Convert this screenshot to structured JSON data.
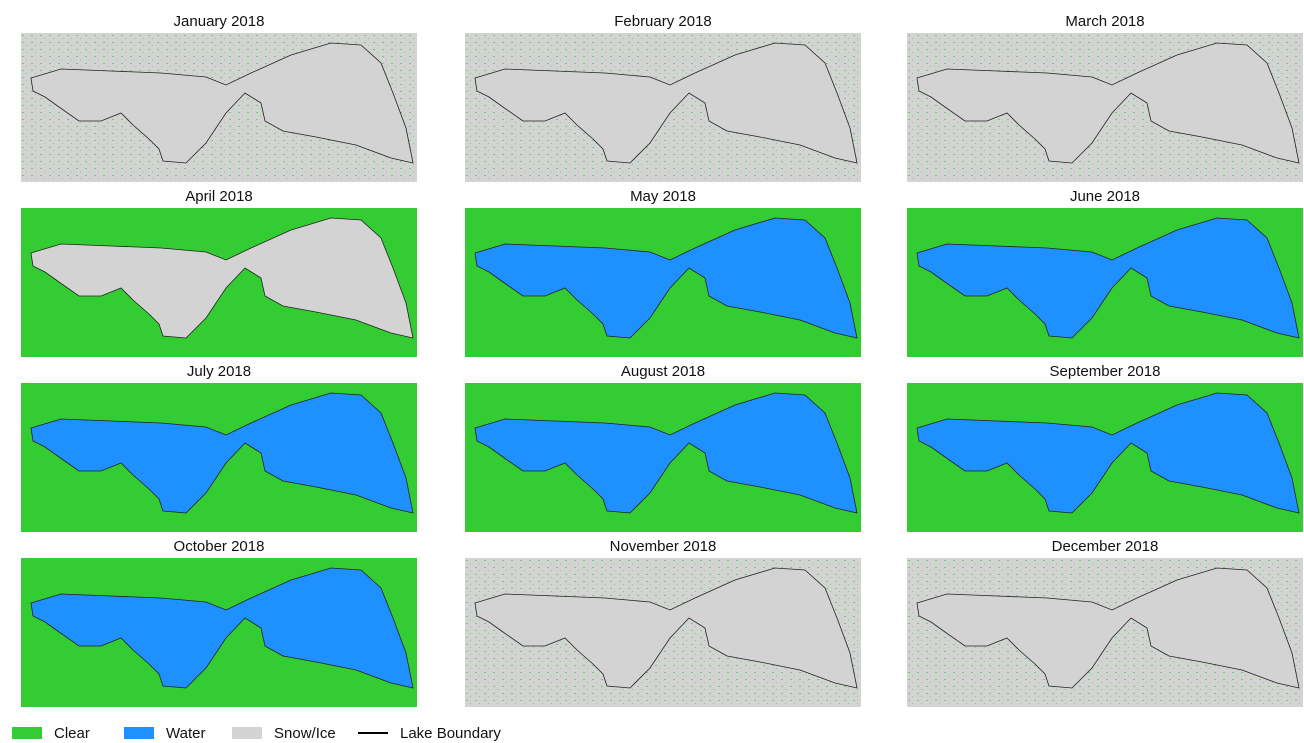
{
  "panels": [
    {
      "title": "January 2018",
      "land_color": "#d3d3d3",
      "lake_color": "#d3d3d3"
    },
    {
      "title": "February 2018",
      "land_color": "#d3d3d3",
      "lake_color": "#d3d3d3"
    },
    {
      "title": "March 2018",
      "land_color": "#d3d3d3",
      "lake_color": "#d3d3d3"
    },
    {
      "title": "April 2018",
      "land_color": "#33cc33",
      "lake_color": "#d3d3d3"
    },
    {
      "title": "May 2018",
      "land_color": "#33cc33",
      "lake_color": "#1e90ff"
    },
    {
      "title": "June 2018",
      "land_color": "#33cc33",
      "lake_color": "#1e90ff"
    },
    {
      "title": "July 2018",
      "land_color": "#33cc33",
      "lake_color": "#1e90ff"
    },
    {
      "title": "August 2018",
      "land_color": "#33cc33",
      "lake_color": "#1e90ff"
    },
    {
      "title": "September 2018",
      "land_color": "#33cc33",
      "lake_color": "#1e90ff"
    },
    {
      "title": "October 2018",
      "land_color": "#33cc33",
      "lake_color": "#1e90ff"
    },
    {
      "title": "November 2018",
      "land_color": "#d3d3d3",
      "lake_color": "#d3d3d3"
    },
    {
      "title": "December 2018",
      "land_color": "#d3d3d3",
      "lake_color": "#d3d3d3"
    }
  ],
  "legend": [
    {
      "label": "Clear",
      "color": "#33cc33"
    },
    {
      "label": "Water",
      "color": "#1e90ff"
    },
    {
      "label": "Snow/Ice",
      "color": "#d3d3d3"
    },
    {
      "label": "Lake Boundary",
      "color": "#000000"
    }
  ]
}
